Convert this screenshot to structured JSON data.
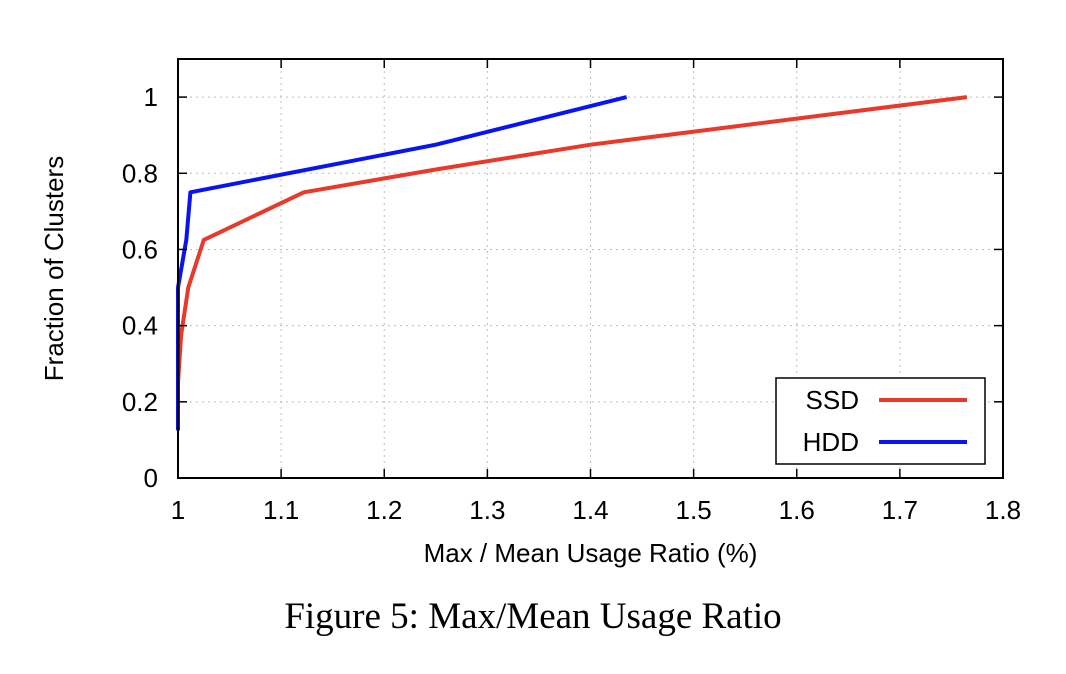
{
  "caption": "Figure 5: Max/Mean Usage Ratio",
  "chart_data": {
    "type": "line",
    "xlabel": "Max / Mean Usage Ratio (%)",
    "ylabel": "Fraction of Clusters",
    "xlim": [
      1,
      1.8
    ],
    "ylim": [
      0,
      1.1
    ],
    "xticks": [
      1,
      1.1,
      1.2,
      1.3,
      1.4,
      1.5,
      1.6,
      1.7,
      1.8
    ],
    "yticks": [
      0,
      0.2,
      0.4,
      0.6,
      0.8,
      1
    ],
    "xtick_labels": [
      "1",
      "1.1",
      "1.2",
      "1.3",
      "1.4",
      "1.5",
      "1.6",
      "1.7",
      "1.8"
    ],
    "ytick_labels": [
      "0",
      "0.2",
      "0.4",
      "0.6",
      "0.8",
      "1"
    ],
    "grid": true,
    "legend_position": "bottom-right",
    "series": [
      {
        "name": "SSD",
        "color": "#e8392b",
        "x": [
          1.0,
          1.0,
          1.003,
          1.01,
          1.025,
          1.122,
          1.25,
          1.4,
          1.765
        ],
        "y": [
          0.125,
          0.25,
          0.375,
          0.5,
          0.625,
          0.75,
          0.81,
          0.875,
          1.0
        ]
      },
      {
        "name": "HDD",
        "color": "#0a14f0",
        "x": [
          1.0,
          1.0,
          1.0,
          1.008,
          1.012,
          1.25,
          1.435
        ],
        "y": [
          0.125,
          0.25,
          0.5,
          0.625,
          0.75,
          0.875,
          1.0
        ]
      }
    ]
  }
}
